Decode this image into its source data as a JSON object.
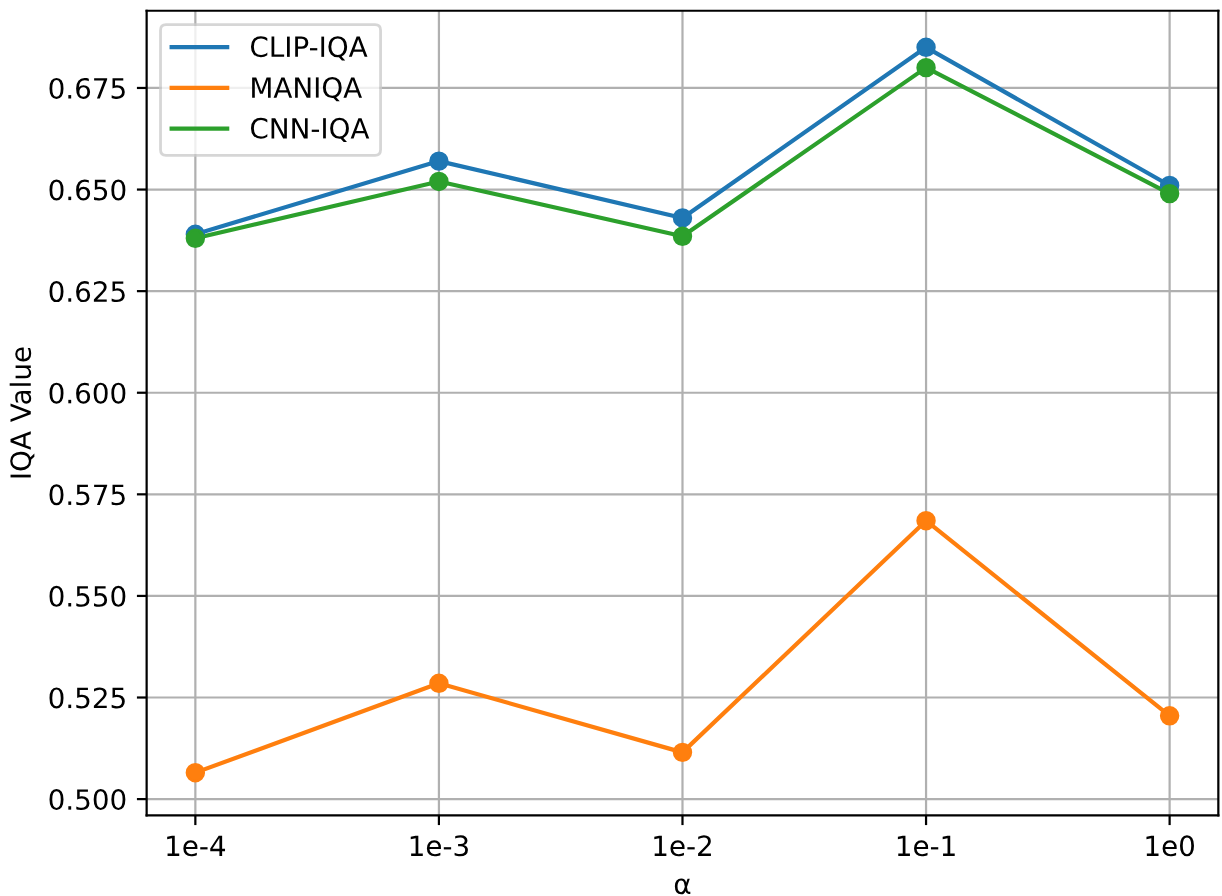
{
  "chart_data": {
    "type": "line",
    "xlabel": "α",
    "ylabel": "IQA Value",
    "categories": [
      "1e-4",
      "1e-3",
      "1e-2",
      "1e-1",
      "1e0"
    ],
    "series": [
      {
        "name": "CLIP-IQA",
        "color": "#1f77b4",
        "values": [
          0.639,
          0.657,
          0.643,
          0.685,
          0.651
        ]
      },
      {
        "name": "MANIQA",
        "color": "#ff7f0e",
        "values": [
          0.5065,
          0.5285,
          0.5115,
          0.5685,
          0.5205
        ]
      },
      {
        "name": "CNN-IQA",
        "color": "#2ca02c",
        "values": [
          0.638,
          0.652,
          0.6385,
          0.68,
          0.649
        ]
      }
    ],
    "ylim": [
      0.496,
      0.694
    ],
    "yticks": [
      {
        "value": 0.5,
        "label": "0.500"
      },
      {
        "value": 0.525,
        "label": "0.525"
      },
      {
        "value": 0.55,
        "label": "0.550"
      },
      {
        "value": 0.575,
        "label": "0.575"
      },
      {
        "value": 0.6,
        "label": "0.600"
      },
      {
        "value": 0.625,
        "label": "0.625"
      },
      {
        "value": 0.65,
        "label": "0.650"
      },
      {
        "value": 0.675,
        "label": "0.675"
      }
    ],
    "grid": true,
    "legend": "top left",
    "marker": "circle",
    "line_style": "solid"
  }
}
